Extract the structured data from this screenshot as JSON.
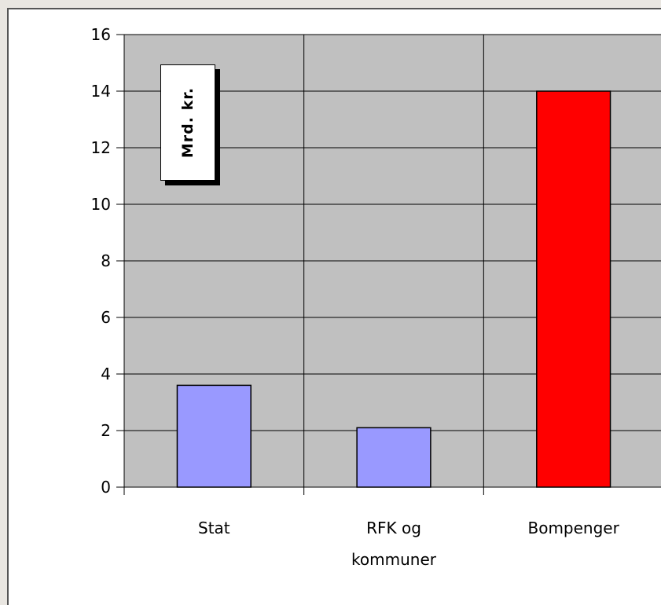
{
  "chart_data": {
    "type": "bar",
    "categories": [
      [
        "Stat"
      ],
      [
        "RFK og",
        "kommuner"
      ],
      [
        "Bompenger"
      ]
    ],
    "values": [
      3.6,
      2.1,
      14.0
    ],
    "bar_colors": [
      "#9999ff",
      "#9999ff",
      "#ff0000"
    ],
    "plot_background": "#c0c0c0",
    "ylabel": "Mrd.  kr.",
    "ylim": [
      0,
      16
    ],
    "yticks": [
      0,
      2,
      4,
      6,
      8,
      10,
      12,
      14,
      16
    ],
    "grid": true
  }
}
